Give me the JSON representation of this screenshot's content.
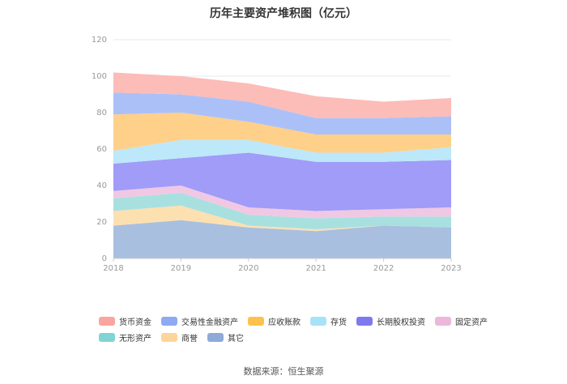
{
  "chart_data": {
    "type": "area",
    "stacked": true,
    "title": "历年主要资产堆积图（亿元）",
    "x": [
      "2018",
      "2019",
      "2020",
      "2021",
      "2022",
      "2023"
    ],
    "ylim": [
      0,
      120
    ],
    "yticks": [
      0,
      20,
      40,
      60,
      80,
      100,
      120
    ],
    "grid": true,
    "legend_position": "bottom",
    "series": [
      {
        "name": "其它",
        "color": "#a8bfe0",
        "values": [
          18,
          21,
          17,
          15,
          18,
          17
        ]
      },
      {
        "name": "商誉",
        "color": "#fde0b0",
        "values": [
          8,
          8,
          1,
          1,
          0,
          0
        ]
      },
      {
        "name": "无形资产",
        "color": "#a8e0e0",
        "values": [
          7,
          7,
          6,
          6,
          5,
          6
        ]
      },
      {
        "name": "固定资产",
        "color": "#f0c8e4",
        "values": [
          4,
          4,
          4,
          4,
          4,
          5
        ]
      },
      {
        "name": "长期股权投资",
        "color": "#a09cf8",
        "values": [
          15,
          15,
          30,
          27,
          26,
          26
        ]
      },
      {
        "name": "存货",
        "color": "#bce8fa",
        "values": [
          7,
          10,
          7,
          5,
          5,
          7
        ]
      },
      {
        "name": "应收账款",
        "color": "#fed08a",
        "values": [
          20,
          15,
          10,
          10,
          10,
          7
        ]
      },
      {
        "name": "交易性金融资产",
        "color": "#acc0f8",
        "values": [
          12,
          10,
          11,
          9,
          9,
          10
        ]
      },
      {
        "name": "货币资金",
        "color": "#fcbcb8",
        "values": [
          11,
          10,
          10,
          12,
          9,
          10
        ]
      }
    ]
  },
  "legend": [
    {
      "label": "货币资金",
      "color": "#f9a6a0"
    },
    {
      "label": "交易性金融资产",
      "color": "#8fa9f3"
    },
    {
      "label": "应收账款",
      "color": "#fdc24c"
    },
    {
      "label": "存货",
      "color": "#a8e2f8"
    },
    {
      "label": "长期股权投资",
      "color": "#7f79ee"
    },
    {
      "label": "固定资产",
      "color": "#ebb8dc"
    },
    {
      "label": "无形资产",
      "color": "#80d4d4"
    },
    {
      "label": "商誉",
      "color": "#fdd59a"
    },
    {
      "label": "其它",
      "color": "#8eabd8"
    }
  ],
  "source": "数据来源：恒生聚源"
}
